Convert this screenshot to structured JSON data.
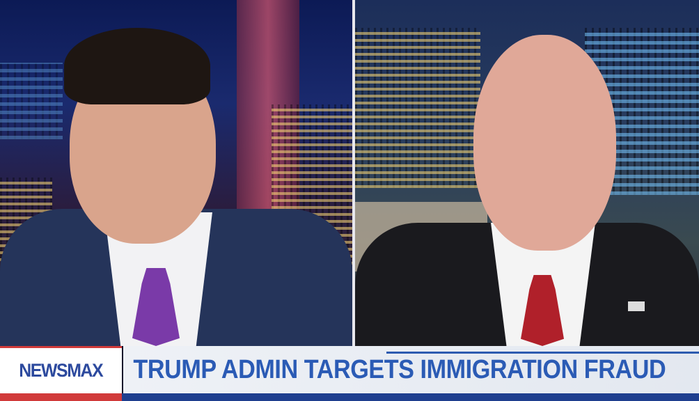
{
  "broadcast": {
    "network_logo": "NEWSMAX",
    "headline": "TRUMP ADMIN TARGETS IMMIGRATION FRAUD",
    "colors": {
      "brand_blue": "#2b5bb5",
      "brand_red": "#d13a3a",
      "band_blue": "#1f3f8f"
    }
  },
  "panes": [
    {
      "id": "left",
      "subject": "anchor in navy suit with purple tie, city skyline backdrop"
    },
    {
      "id": "right",
      "subject": "guest in dark suit with red tie, city skyline backdrop"
    }
  ]
}
